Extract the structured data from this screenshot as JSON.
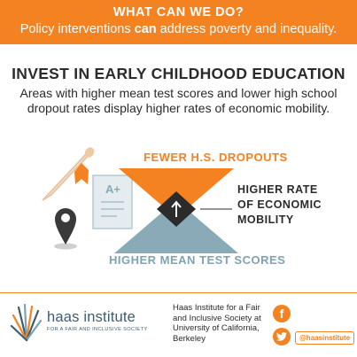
{
  "banner": {
    "title": "WHAT CAN WE DO?",
    "subtitle_pre": "Policy interventions ",
    "subtitle_bold": "can",
    "subtitle_post": " address poverty and inequality."
  },
  "heading": "INVEST IN EARLY CHILDHOOD EDUCATION",
  "subtext": "Areas with higher mean test scores and lower high school dropout rates display higher rates of economic mobility.",
  "diagram": {
    "top_label": "FEWER H.S. DROPOUTS",
    "bottom_label": "HIGHER MEAN TEST SCORES",
    "right_label_lines": [
      "HIGHER RATE",
      "OF ECONOMIC",
      "MOBILITY"
    ],
    "grade_mark": "A+",
    "colors": {
      "orange": "#f58220",
      "blue_gray": "#8aaab8",
      "dark": "#2b2b2b"
    },
    "icons": [
      "diploma-scroll-icon",
      "graded-paper-icon",
      "location-pin-icon",
      "up-arrow-icon"
    ]
  },
  "footer": {
    "logo_name": "haas institute",
    "logo_tagline": "FOR A FAIR AND INCLUSIVE SOCIETY",
    "address_lines": [
      "Haas Institute for a Fair",
      "and Inclusive Society at",
      "University of California,",
      "Berkeley"
    ],
    "facebook_glyph": "f",
    "twitter_handle": "@haasinstitute"
  }
}
